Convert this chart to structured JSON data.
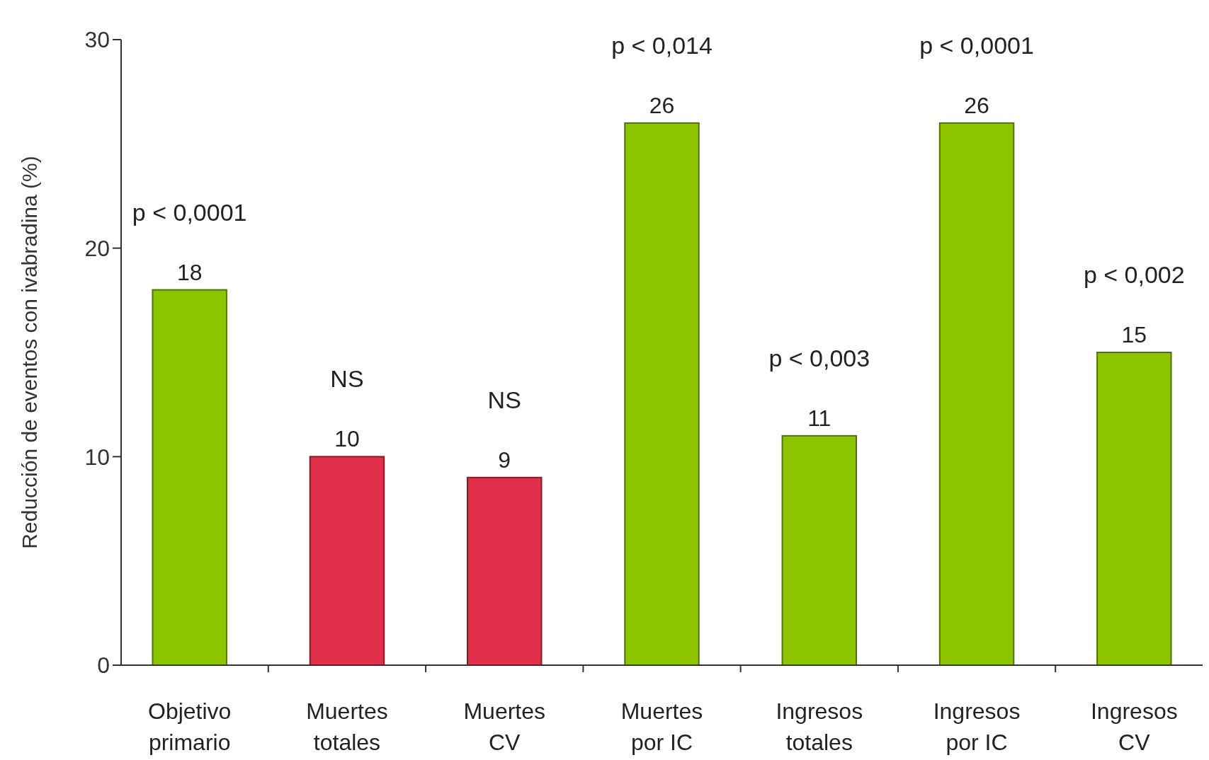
{
  "chart_data": {
    "type": "bar",
    "ylabel": "Reducción de eventos con ivabradina (%)",
    "categories": [
      "Objetivo primario",
      "Muertes totales",
      "Muertes CV",
      "Muertes por IC",
      "Ingresos totales",
      "Ingresos por IC",
      "Ingresos CV"
    ],
    "values": [
      18,
      10,
      9,
      26,
      11,
      26,
      15
    ],
    "colors": [
      "#8cc400",
      "#e0304a",
      "#e0304a",
      "#8cc400",
      "#8cc400",
      "#8cc400",
      "#8cc400"
    ],
    "data_labels": true,
    "ylim": [
      0,
      30
    ],
    "yticks": [
      0,
      10,
      20,
      30
    ],
    "grid": false,
    "annotations": [
      "p < 0,0001",
      "NS",
      "NS",
      "p < 0,014",
      "p < 0,003",
      "p < 0,0001",
      "p < 0,002"
    ]
  }
}
